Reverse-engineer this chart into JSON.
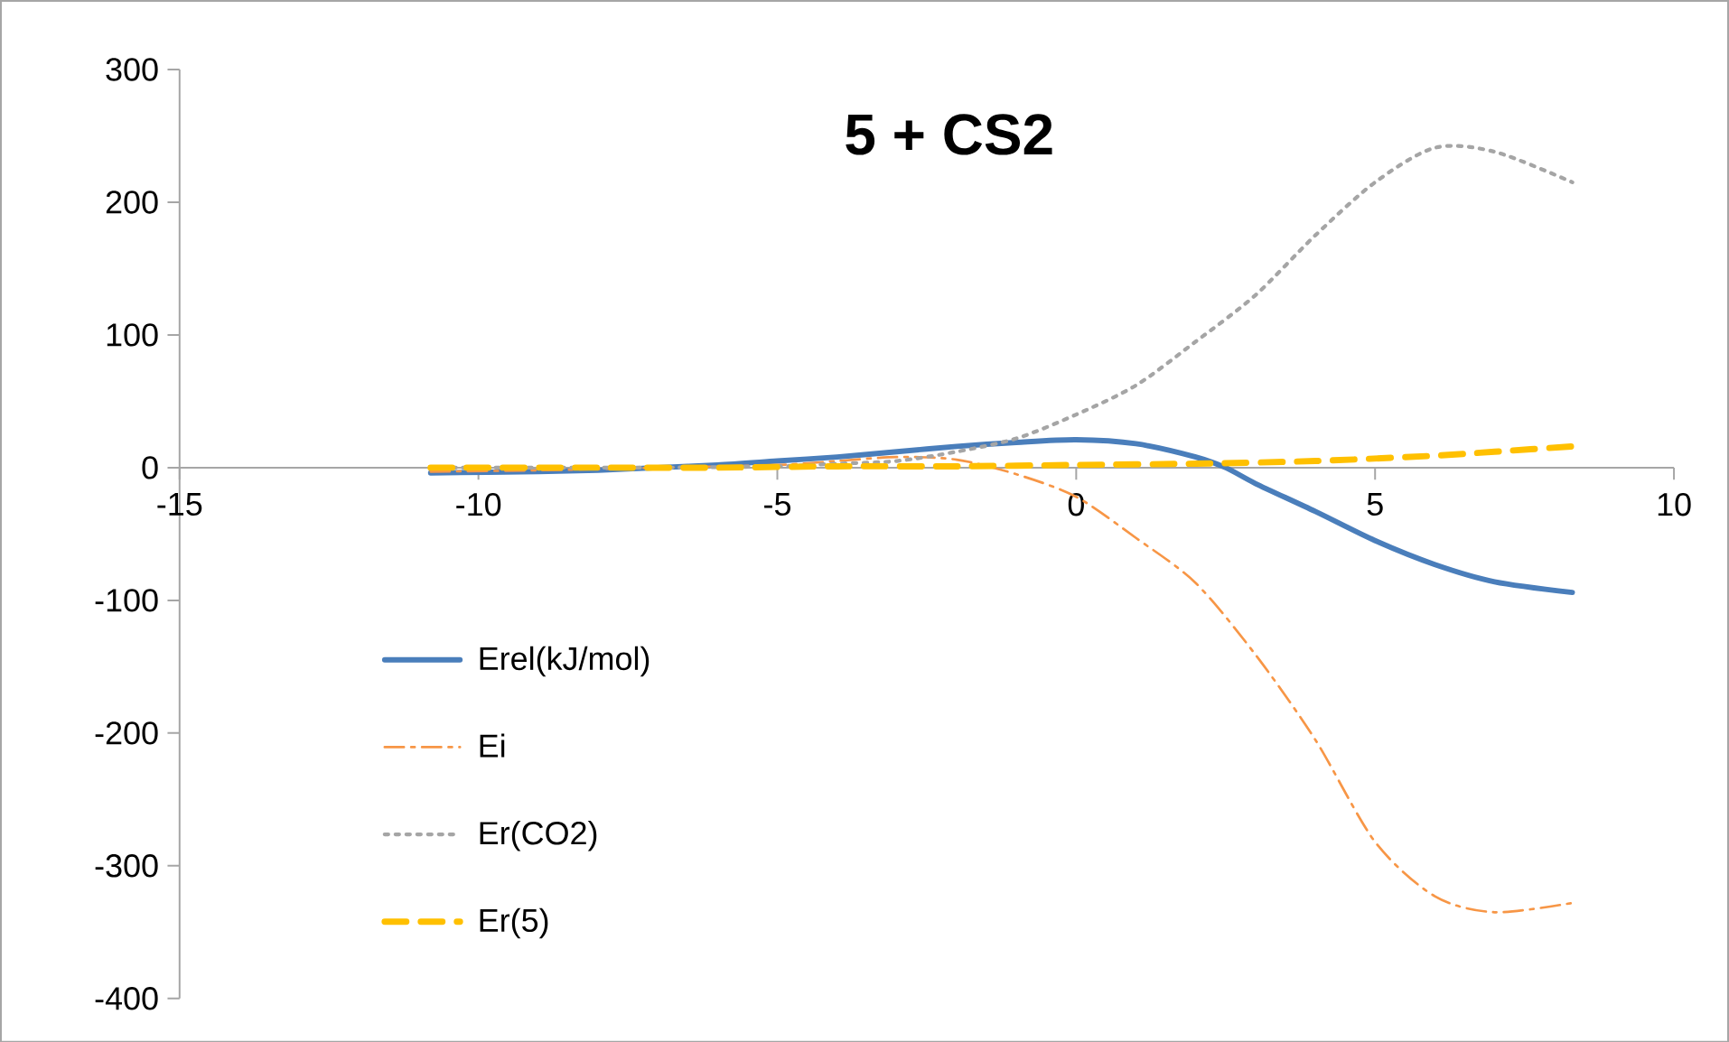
{
  "chart_data": {
    "type": "line",
    "title": "5 + CS2",
    "xlim": [
      -15,
      10
    ],
    "ylim": [
      -400,
      300
    ],
    "xticks": [
      -15,
      -10,
      -5,
      0,
      5,
      10
    ],
    "yticks": [
      -400,
      -300,
      -200,
      -100,
      0,
      100,
      200,
      300
    ],
    "grid": false,
    "legend": "bottom left",
    "series": [
      {
        "name": "Erel(kJ/mol)",
        "color": "#4a7ebb",
        "line_style": "solid",
        "x": [
          -10.8,
          -9,
          -8,
          -7,
          -6,
          -5,
          -4,
          -3,
          -2,
          -1,
          0,
          1,
          2,
          2.5,
          3,
          4,
          5,
          6,
          7,
          8.3
        ],
        "values": [
          -4,
          -3,
          -2,
          0,
          2,
          5,
          8,
          12,
          16,
          19,
          21,
          18,
          8,
          0,
          -12,
          -33,
          -55,
          -73,
          -86,
          -94
        ]
      },
      {
        "name": "Ei",
        "color": "#f79646",
        "line_style": "dashdot",
        "x": [
          -10.8,
          -9,
          -7,
          -5,
          -4,
          -3,
          -2,
          -1,
          0,
          1,
          2,
          3,
          4,
          5,
          6,
          7,
          8.3
        ],
        "values": [
          -3,
          -2,
          0,
          2,
          5,
          8,
          6,
          -5,
          -22,
          -53,
          -87,
          -141,
          -205,
          -282,
          -323,
          -335,
          -328
        ]
      },
      {
        "name": "Er(CO2)",
        "color": "#a5a5a5",
        "line_style": "dotted",
        "x": [
          -10.8,
          -9,
          -7,
          -5,
          -4,
          -3,
          -2,
          -1,
          0,
          1,
          2,
          3,
          4,
          5,
          6,
          7,
          8.3
        ],
        "values": [
          0,
          0,
          0,
          1,
          3,
          5,
          12,
          22,
          40,
          62,
          95,
          130,
          175,
          215,
          241,
          238,
          215
        ]
      },
      {
        "name": "Er(5)",
        "color": "#ffc000",
        "line_style": "dashed",
        "x": [
          -10.8,
          -8,
          -6,
          -4,
          -2,
          0,
          2,
          4,
          6,
          7,
          8.3
        ],
        "values": [
          0,
          0,
          0,
          1,
          1,
          2,
          3,
          5,
          9,
          12,
          16
        ]
      }
    ]
  }
}
